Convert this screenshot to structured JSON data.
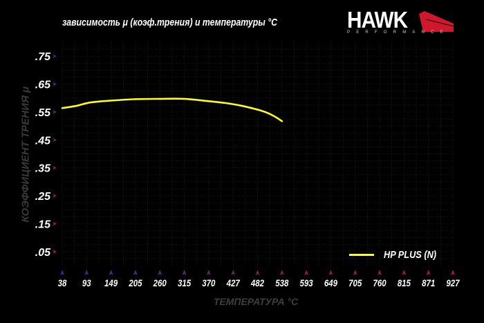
{
  "brand": {
    "name": "HAWK",
    "tagline": "PERFORMANCE"
  },
  "chart_data": {
    "type": "line",
    "title": "зависимость μ (коэф.трения) и температуры °C",
    "xlabel": "ТЕМПЕРАТУРА °C",
    "ylabel": "КОЭФФИЦИЕНТ ТРЕНИЯ μ",
    "x_ticks": [
      38,
      93,
      149,
      205,
      260,
      315,
      370,
      427,
      482,
      538,
      593,
      649,
      705,
      760,
      815,
      871,
      927
    ],
    "y_ticks": [
      0.05,
      0.15,
      0.25,
      0.35,
      0.45,
      0.55,
      0.65,
      0.75
    ],
    "y_tick_labels": [
      ".05",
      ".15",
      ".25",
      ".35",
      ".45",
      ".55",
      ".65",
      ".75"
    ],
    "ylim": [
      0,
      0.8
    ],
    "xlim": [
      38,
      927
    ],
    "grid": true,
    "legend": "bottom-right",
    "series": [
      {
        "name": "HP PLUS (N)",
        "color": "#ffff1a",
        "x": [
          38,
          70,
          101,
          150,
          205,
          258,
          315,
          368,
          410,
          447,
          494,
          520,
          538
        ],
        "y": [
          0.564,
          0.572,
          0.584,
          0.591,
          0.596,
          0.597,
          0.597,
          0.589,
          0.582,
          0.572,
          0.553,
          0.535,
          0.517
        ]
      }
    ]
  }
}
